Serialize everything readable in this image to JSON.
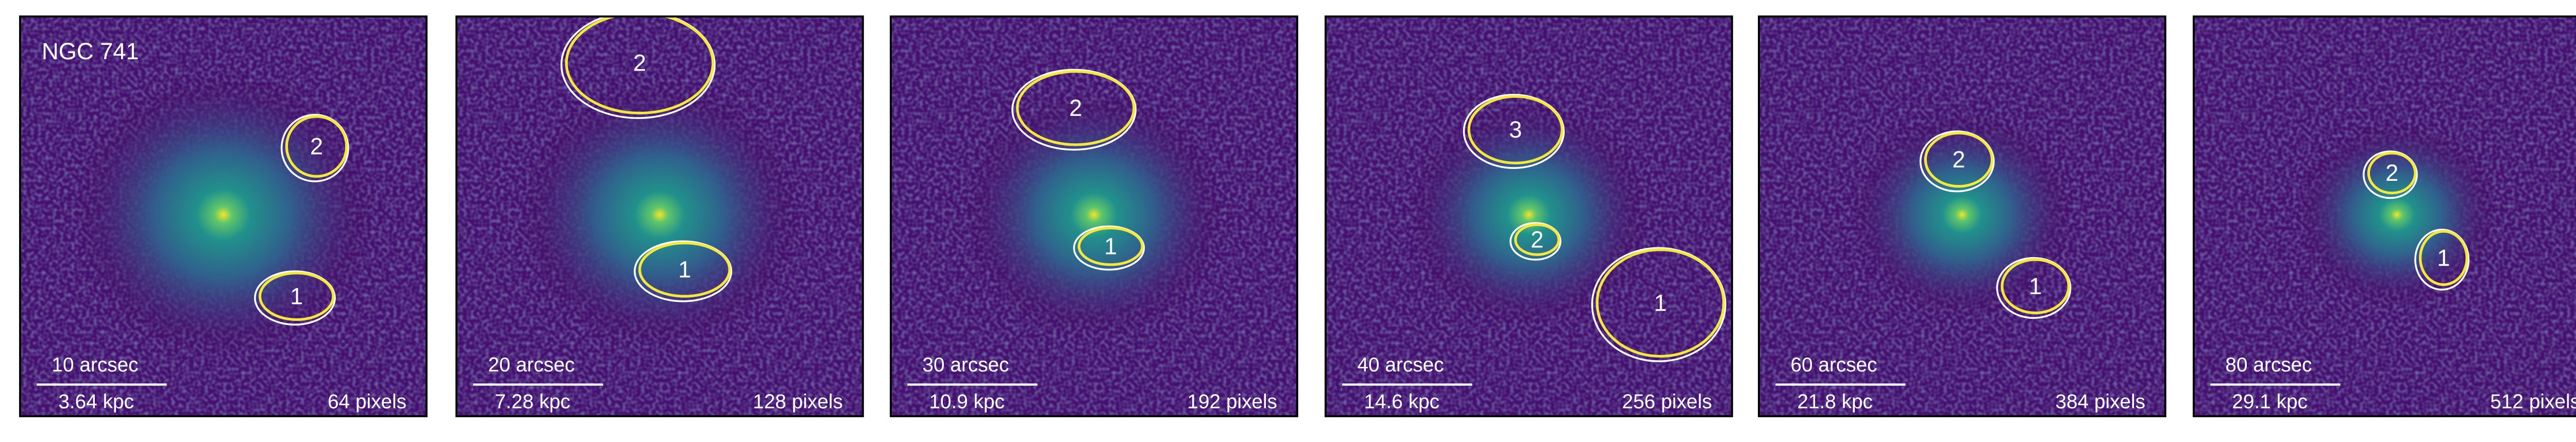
{
  "galaxy": "NGC 741",
  "panels": [
    {
      "arcsec": "10 arcsec",
      "kpc": "3.64 kpc",
      "pixels": "64 pixels",
      "regions": [
        "2",
        "1"
      ]
    },
    {
      "arcsec": "20 arcsec",
      "kpc": "7.28 kpc",
      "pixels": "128 pixels",
      "regions": [
        "2",
        "1"
      ]
    },
    {
      "arcsec": "30 arcsec",
      "kpc": "10.9 kpc",
      "pixels": "192 pixels",
      "regions": [
        "2",
        "1"
      ]
    },
    {
      "arcsec": "40 arcsec",
      "kpc": "14.6 kpc",
      "pixels": "256 pixels",
      "regions": [
        "3",
        "2",
        "1"
      ]
    },
    {
      "arcsec": "60 arcsec",
      "kpc": "21.8 kpc",
      "pixels": "384 pixels",
      "regions": [
        "2",
        "1"
      ]
    },
    {
      "arcsec": "80 arcsec",
      "kpc": "29.1 kpc",
      "pixels": "512 pixels",
      "regions": [
        "2",
        "1"
      ]
    }
  ]
}
